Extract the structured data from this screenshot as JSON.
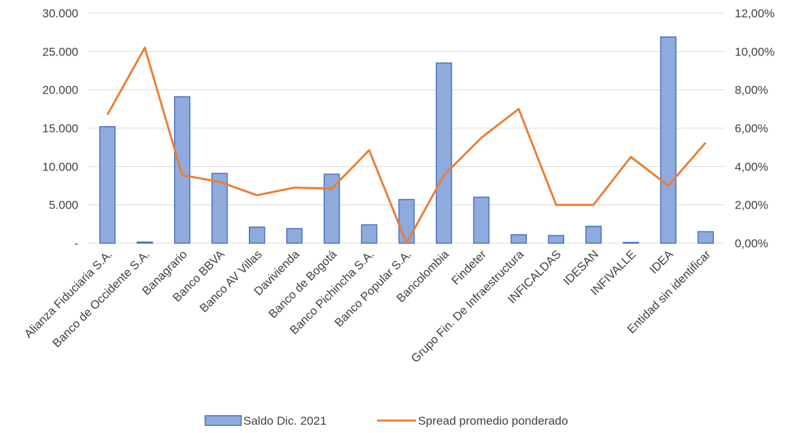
{
  "chart_data": {
    "type": "bar",
    "categories": [
      "Alianza Fiduciaria S.A.",
      "Banco  de Occidente S.A.",
      "Banagrario",
      "Banco BBVA",
      "Banco AV Villas",
      "Davivienda",
      "Banco de Bogotá",
      "Banco Pichincha S.A.",
      "Banco Popular S.A.",
      "Bancolombia",
      "Findeter",
      "Grupo Fin. De Infraestructura",
      "INFICALDAS",
      "IDESAN",
      "INFIVALLE",
      "IDEA",
      "Entidad sin identificar"
    ],
    "series": [
      {
        "name": "Saldo Dic. 2021",
        "type": "bar",
        "axis": "left",
        "color": "#8faadc",
        "border": "#4472c4",
        "values": [
          15200,
          150,
          19100,
          9100,
          2100,
          1900,
          9000,
          2400,
          5700,
          23500,
          6000,
          1100,
          1000,
          2200,
          100,
          26900,
          1500
        ]
      },
      {
        "name": "Spread promedio ponderado",
        "type": "line",
        "axis": "right",
        "color": "#ed7d31",
        "values": [
          6.7,
          10.2,
          3.55,
          3.2,
          2.5,
          2.9,
          2.85,
          4.85,
          0.0,
          3.55,
          5.5,
          7.0,
          2.0,
          2.0,
          4.5,
          3.0,
          5.25
        ]
      }
    ],
    "y_left": {
      "min": 0,
      "max": 30000,
      "ticks": [
        0,
        5000,
        10000,
        15000,
        20000,
        25000,
        30000
      ],
      "tick_labels": [
        "-",
        "5.000",
        "10.000",
        "15.000",
        "20.000",
        "25.000",
        "30.000"
      ]
    },
    "y_right": {
      "min": 0,
      "max": 12,
      "ticks": [
        0,
        2,
        4,
        6,
        8,
        10,
        12
      ],
      "tick_labels": [
        "0,00%",
        "2,00%",
        "4,00%",
        "6,00%",
        "8,00%",
        "10,00%",
        "12,00%"
      ]
    },
    "grid": true,
    "legend_position": "bottom"
  }
}
